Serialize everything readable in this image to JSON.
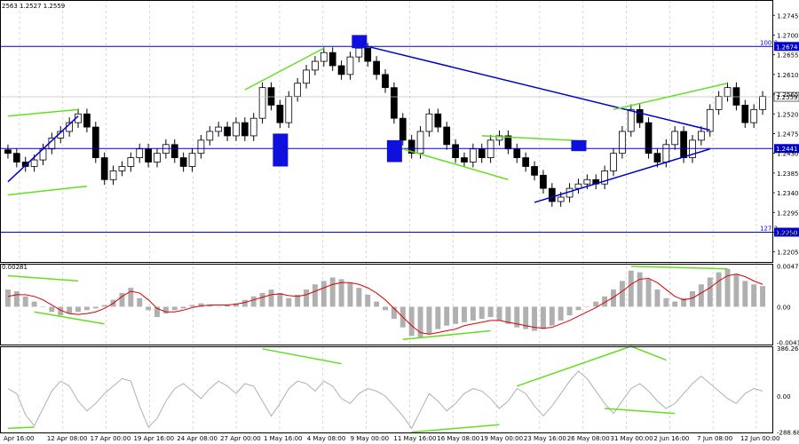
{
  "chart_data": [
    {
      "type": "candlestick",
      "title": "",
      "header_text": "2563 1.2527 1.2559",
      "x_ticks": [
        "Apr 16:00",
        "12 Apr 08:00",
        "17 Apr 00:00",
        "19 Apr 16:00",
        "24 Apr 08:00",
        "27 Apr 00:00",
        "1 May 16:00",
        "4 May 08:00",
        "9 May 00:00",
        "11 May 16:00",
        "16 May 08:00",
        "19 May 00:00",
        "23 May 16:00",
        "26 May 08:00",
        "31 May 00:00",
        "2 Jun 16:00",
        "7 Jun 08:00",
        "12 Jun 00:00"
      ],
      "y_ticks": [
        1.2745,
        1.27,
        1.2655,
        1.261,
        1.2565,
        1.252,
        1.2475,
        1.243,
        1.2385,
        1.234,
        1.2295,
        1.225,
        1.2205
      ],
      "ylim": [
        1.218,
        1.278
      ],
      "last_price": 1.2559,
      "closes": [
        1.243,
        1.241,
        1.24,
        1.2415,
        1.244,
        1.2465,
        1.248,
        1.25,
        1.252,
        1.249,
        1.242,
        1.237,
        1.239,
        1.24,
        1.242,
        1.244,
        1.241,
        1.243,
        1.245,
        1.242,
        1.24,
        1.243,
        1.246,
        1.248,
        1.249,
        1.247,
        1.25,
        1.247,
        1.251,
        1.258,
        1.254,
        1.25,
        1.256,
        1.259,
        1.262,
        1.264,
        1.266,
        1.263,
        1.261,
        1.265,
        1.267,
        1.264,
        1.261,
        1.258,
        1.251,
        1.246,
        1.243,
        1.248,
        1.252,
        1.249,
        1.245,
        1.242,
        1.241,
        1.244,
        1.242,
        1.246,
        1.247,
        1.244,
        1.242,
        1.24,
        1.238,
        1.235,
        1.232,
        1.233,
        1.235,
        1.236,
        1.237,
        1.236,
        1.239,
        1.243,
        1.248,
        1.253,
        1.25,
        1.243,
        1.241,
        1.245,
        1.248,
        1.242,
        1.246,
        1.248,
        1.253,
        1.256,
        1.258,
        1.254,
        1.25,
        1.253,
        1.256
      ],
      "horizontal_levels": [
        {
          "price": 1.2674,
          "label": "1.2674",
          "fib_label": "100.0"
        },
        {
          "price": 1.2441,
          "label": "1.2441"
        },
        {
          "price": 1.225,
          "label": "1.2250",
          "fib_label": "127.2"
        }
      ]
    },
    {
      "type": "bar+line",
      "title": "MACD",
      "header_text": "0.00281",
      "y_ticks": [
        0.00474,
        0.0,
        -0.00416
      ],
      "ylim": [
        -0.0045,
        0.005
      ],
      "histogram": [
        0.002,
        0.0018,
        0.0012,
        0.0006,
        0.0,
        -0.0006,
        -0.001,
        -0.0008,
        -0.0006,
        -0.0004,
        -0.0002,
        0.0002,
        0.0008,
        0.0016,
        0.0022,
        0.001,
        -0.0004,
        -0.0012,
        -0.0008,
        -0.0004,
        -0.0002,
        0.0002,
        0.0004,
        0.0002,
        0.0,
        0.0002,
        0.0004,
        0.0008,
        0.0012,
        0.0016,
        0.002,
        0.0016,
        0.001,
        0.0014,
        0.002,
        0.0026,
        0.003,
        0.0034,
        0.0032,
        0.0028,
        0.0022,
        0.0014,
        0.0006,
        -0.0004,
        -0.0014,
        -0.0024,
        -0.0034,
        -0.0036,
        -0.0032,
        -0.0026,
        -0.0022,
        -0.002,
        -0.0018,
        -0.0016,
        -0.0014,
        -0.0012,
        -0.0016,
        -0.002,
        -0.0024,
        -0.0026,
        -0.0028,
        -0.0026,
        -0.0022,
        -0.0016,
        -0.001,
        -0.0004,
        0.0,
        0.0006,
        0.0012,
        0.002,
        0.003,
        0.0042,
        0.004,
        0.0032,
        0.002,
        0.001,
        0.0006,
        0.001,
        0.0018,
        0.0026,
        0.0034,
        0.004,
        0.0044,
        0.0038,
        0.003,
        0.0026,
        0.0024
      ],
      "signal": [
        0.0012,
        0.0014,
        0.0014,
        0.0012,
        0.0008,
        0.0002,
        -0.0004,
        -0.0008,
        -0.0009,
        -0.0008,
        -0.0006,
        -0.0002,
        0.0004,
        0.0012,
        0.0018,
        0.0016,
        0.0008,
        -0.0002,
        -0.0006,
        -0.0006,
        -0.0004,
        -0.0001,
        0.0001,
        0.0002,
        0.0002,
        0.0002,
        0.0003,
        0.0005,
        0.0008,
        0.0011,
        0.0014,
        0.0015,
        0.0013,
        0.0012,
        0.0014,
        0.0018,
        0.0022,
        0.0026,
        0.0028,
        0.0028,
        0.0026,
        0.0022,
        0.0016,
        0.0008,
        -0.0002,
        -0.0012,
        -0.0022,
        -0.003,
        -0.0032,
        -0.003,
        -0.0028,
        -0.0026,
        -0.0022,
        -0.002,
        -0.0018,
        -0.0016,
        -0.0016,
        -0.0018,
        -0.002,
        -0.0022,
        -0.0024,
        -0.0025,
        -0.0024,
        -0.002,
        -0.0016,
        -0.0011,
        -0.0006,
        -0.0001,
        0.0005,
        0.0011,
        0.0018,
        0.0026,
        0.0032,
        0.0033,
        0.0028,
        0.002,
        0.0012,
        0.0008,
        0.001,
        0.0016,
        0.0022,
        0.003,
        0.0036,
        0.0038,
        0.0035,
        0.003,
        0.0026
      ]
    },
    {
      "type": "line",
      "title": "CCI",
      "y_ticks": [
        386.2645,
        0.0,
        -288.682
      ],
      "ylim": [
        -300,
        400
      ],
      "values": [
        60,
        20,
        -150,
        -240,
        -100,
        40,
        120,
        80,
        -40,
        -120,
        -60,
        20,
        80,
        140,
        120,
        -80,
        -250,
        -180,
        -40,
        60,
        100,
        40,
        -20,
        60,
        120,
        80,
        20,
        100,
        80,
        -40,
        -160,
        -60,
        60,
        120,
        100,
        40,
        120,
        80,
        -20,
        -60,
        20,
        60,
        40,
        0,
        -80,
        -160,
        -260,
        -120,
        20,
        -40,
        -120,
        -60,
        20,
        60,
        40,
        -20,
        -100,
        -40,
        60,
        20,
        -80,
        -160,
        -80,
        20,
        120,
        200,
        140,
        40,
        -60,
        -140,
        -40,
        60,
        100,
        40,
        -40,
        -100,
        -60,
        20,
        100,
        160,
        100,
        40,
        -20,
        -60,
        20,
        60,
        40
      ]
    }
  ]
}
